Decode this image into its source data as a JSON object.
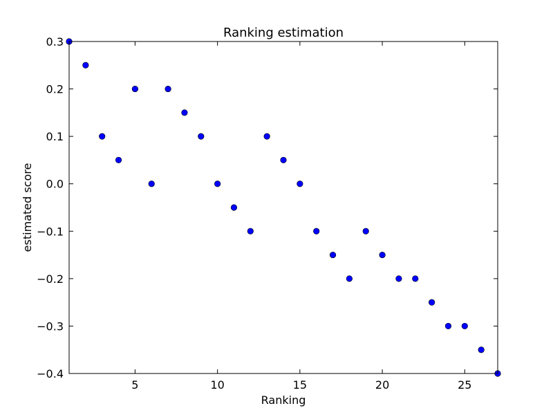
{
  "chart_data": {
    "type": "scatter",
    "title": "Ranking estimation",
    "xlabel": "Ranking",
    "ylabel": "estimated score",
    "xlim": [
      1,
      27
    ],
    "ylim": [
      -0.4,
      0.3
    ],
    "grid": false,
    "x_ticks": [
      5,
      10,
      15,
      20,
      25
    ],
    "x_tick_labels": [
      "5",
      "10",
      "15",
      "20",
      "25"
    ],
    "y_ticks": [
      0.3,
      0.2,
      0.1,
      0.0,
      -0.1,
      -0.2,
      -0.3,
      -0.4
    ],
    "y_tick_labels": [
      "0.3",
      "0.2",
      "0.1",
      "0.0",
      "−0.1",
      "−0.2",
      "−0.3",
      "−0.4"
    ],
    "series": [
      {
        "x": [
          1,
          2,
          3,
          4,
          5,
          6,
          7,
          8,
          9,
          10,
          11,
          12,
          13,
          14,
          15,
          16,
          17,
          18,
          19,
          20,
          21,
          22,
          23,
          24,
          25,
          26,
          27
        ],
        "y": [
          0.3,
          0.25,
          0.1,
          0.05,
          0.2,
          0.0,
          0.2,
          0.15,
          0.1,
          0.0,
          -0.05,
          -0.1,
          0.1,
          0.05,
          0.0,
          -0.1,
          -0.15,
          -0.2,
          -0.1,
          -0.15,
          -0.2,
          -0.2,
          -0.25,
          -0.3,
          -0.3,
          -0.35,
          -0.4
        ],
        "color": "#0000ff"
      }
    ]
  }
}
